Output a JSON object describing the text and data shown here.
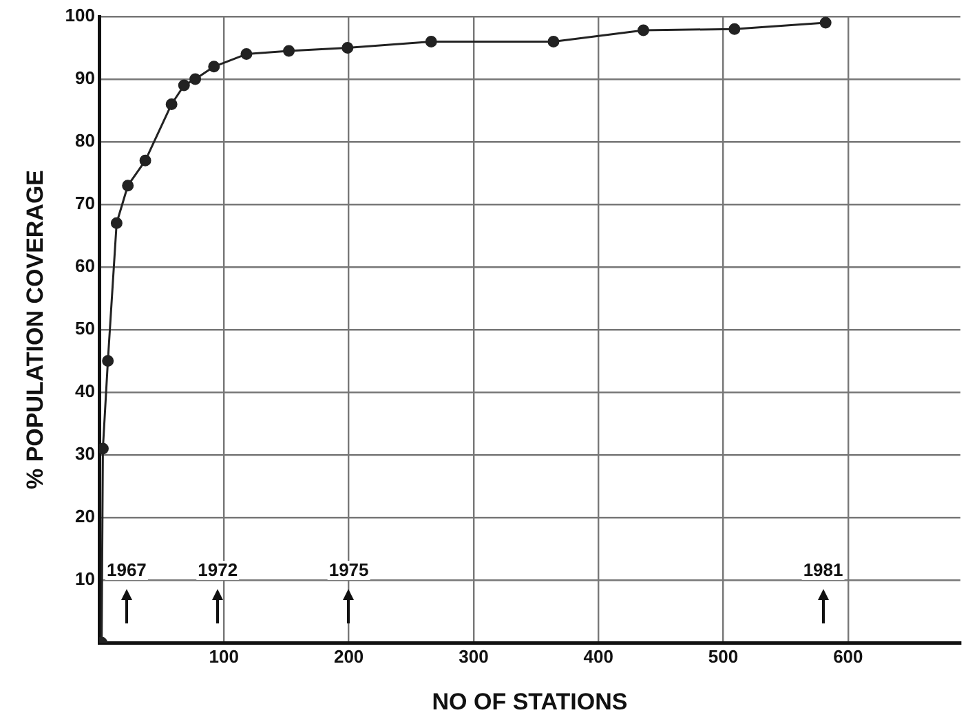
{
  "chart_data": {
    "type": "line",
    "xlabel": "NO OF STATIONS",
    "ylabel": "% POPULATION COVERAGE",
    "x": [
      2,
      3,
      7,
      14,
      23,
      37,
      58,
      68,
      77,
      92,
      118,
      152,
      199,
      266,
      364,
      436,
      509,
      582
    ],
    "series": [
      {
        "color": "#222222",
        "values": [
          0,
          31,
          45,
          67,
          73,
          77,
          86,
          89,
          90,
          92,
          94,
          94.5,
          95,
          96,
          96,
          97.8,
          98,
          99
        ]
      }
    ],
    "xlim": [
      0,
      690
    ],
    "xticks": [
      100,
      200,
      300,
      400,
      500,
      600
    ],
    "ylim": [
      0,
      100
    ],
    "yticks": [
      10,
      20,
      30,
      40,
      50,
      60,
      70,
      80,
      90,
      100
    ],
    "grid": true,
    "legend": false,
    "marker": "circle",
    "line_style": "solid",
    "annotations": [
      {
        "text": "1967",
        "x": 22
      },
      {
        "text": "1972",
        "x": 95
      },
      {
        "text": "1975",
        "x": 200
      },
      {
        "text": "1981",
        "x": 580
      }
    ]
  }
}
